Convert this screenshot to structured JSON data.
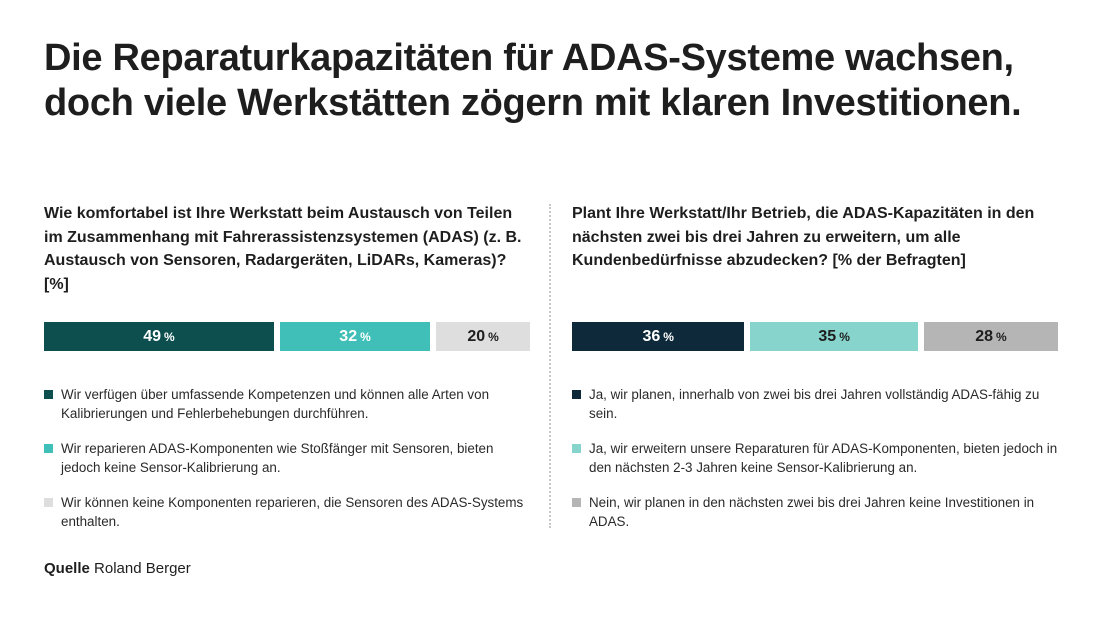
{
  "title": "Die Reparaturkapazitäten für ADAS-Systeme wachsen, doch viele Werkstätten zögern mit klaren Investitionen.",
  "source": {
    "label": "Quelle",
    "value": "Roland Berger"
  },
  "pct_sign": "%",
  "chart_data": [
    {
      "type": "bar",
      "orientation": "horizontal-stacked-100",
      "title": "Wie komfortabel ist Ihre Werkstatt beim Austausch von Teilen im Zusammenhang mit Fahrerassistenzsystemen (ADAS) (z. B. Austausch von Sensoren, Radargeräten, LiDARs, Kameras)? [%]",
      "series": [
        {
          "name": "Wir verfügen über umfassende Kompetenzen und können alle Arten von Kalibrierungen und Fehlerbehebungen durchführen.",
          "value": 49,
          "color": "#0d4f4f",
          "text_color": "#ffffff"
        },
        {
          "name": "Wir reparieren ADAS-Komponenten wie Stoßfänger mit Sensoren, bieten jedoch keine Sensor-Kalibrierung an.",
          "value": 32,
          "color": "#3fbfb7",
          "text_color": "#ffffff"
        },
        {
          "name": "Wir können keine Komponenten reparieren, die Sensoren des ADAS-Systems enthalten.",
          "value": 20,
          "color": "#dedede",
          "text_color": "#1e1e1e"
        }
      ]
    },
    {
      "type": "bar",
      "orientation": "horizontal-stacked-100",
      "title": "Plant Ihre Werkstatt/Ihr Betrieb, die ADAS-Kapazitäten in den nächsten zwei bis drei Jahren zu erweitern, um alle Kundenbedürfnisse abzudecken? [% der Befragten]",
      "series": [
        {
          "name": "Ja, wir planen, innerhalb von zwei bis drei Jahren vollständig ADAS-fähig zu sein.",
          "value": 36,
          "color": "#0e2a3a",
          "text_color": "#ffffff"
        },
        {
          "name": "Ja, wir erweitern unsere Reparaturen für ADAS-Komponenten, bieten jedoch in den nächsten 2-3 Jahren keine Sensor-Kalibrierung an.",
          "value": 35,
          "color": "#86d4cb",
          "text_color": "#1e1e1e"
        },
        {
          "name": "Nein, wir planen in den nächsten zwei bis drei Jahren keine Investitionen in ADAS.",
          "value": 28,
          "color": "#b5b5b5",
          "text_color": "#1e1e1e"
        }
      ]
    }
  ]
}
